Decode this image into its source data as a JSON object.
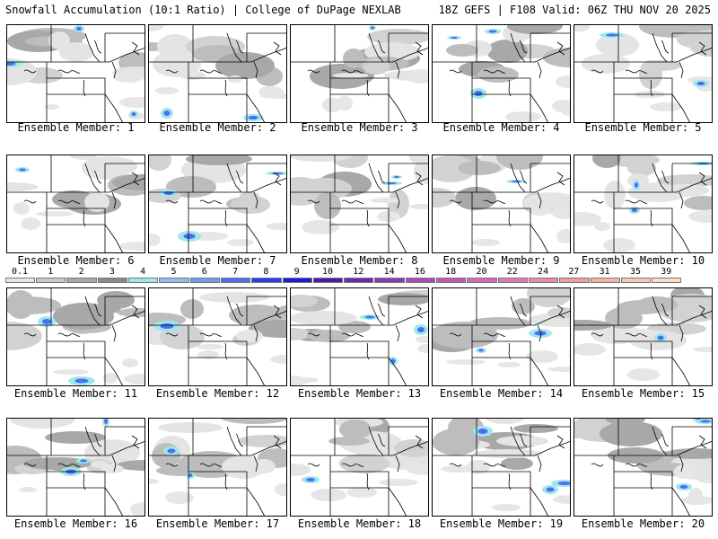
{
  "header": {
    "title": "Snowfall Accumulation (10:1 Ratio) | College of DuPage NEXLAB",
    "run_info": "18Z GEFS | F108 Valid: 06Z THU NOV 20 2025"
  },
  "member_label_prefix": "Ensemble Member: ",
  "members": [
    {
      "label": "Ensemble Member: 1"
    },
    {
      "label": "Ensemble Member: 2"
    },
    {
      "label": "Ensemble Member: 3"
    },
    {
      "label": "Ensemble Member: 4"
    },
    {
      "label": "Ensemble Member: 5"
    },
    {
      "label": "Ensemble Member: 6"
    },
    {
      "label": "Ensemble Member: 7"
    },
    {
      "label": "Ensemble Member: 8"
    },
    {
      "label": "Ensemble Member: 9"
    },
    {
      "label": "Ensemble Member: 10"
    },
    {
      "label": "Ensemble Member: 11"
    },
    {
      "label": "Ensemble Member: 12"
    },
    {
      "label": "Ensemble Member: 13"
    },
    {
      "label": "Ensemble Member: 14"
    },
    {
      "label": "Ensemble Member: 15"
    },
    {
      "label": "Ensemble Member: 16"
    },
    {
      "label": "Ensemble Member: 17"
    },
    {
      "label": "Ensemble Member: 18"
    },
    {
      "label": "Ensemble Member: 19"
    },
    {
      "label": "Ensemble Member: 20"
    }
  ],
  "colorbar": {
    "labels": [
      "0.1",
      "1",
      "2",
      "3",
      "4",
      "5",
      "6",
      "7",
      "8",
      "9",
      "10",
      "12",
      "14",
      "16",
      "18",
      "20",
      "22",
      "24",
      "27",
      "31",
      "35",
      "39"
    ],
    "colors": [
      "#e6e6e6",
      "#c9c9c9",
      "#a8a8a8",
      "#8a8a8a",
      "#9fe6ee",
      "#8fbff2",
      "#6f9df0",
      "#4a6ff0",
      "#2a3df0",
      "#1a1ae0",
      "#4a1aa8",
      "#6a2ab0",
      "#8a3ab8",
      "#a84ab8",
      "#c05ab8",
      "#d26ab8",
      "#e07ab8",
      "#ea8ab0",
      "#f09ea0",
      "#f4b4a4",
      "#f7c8b4",
      "#fadcc8"
    ]
  }
}
